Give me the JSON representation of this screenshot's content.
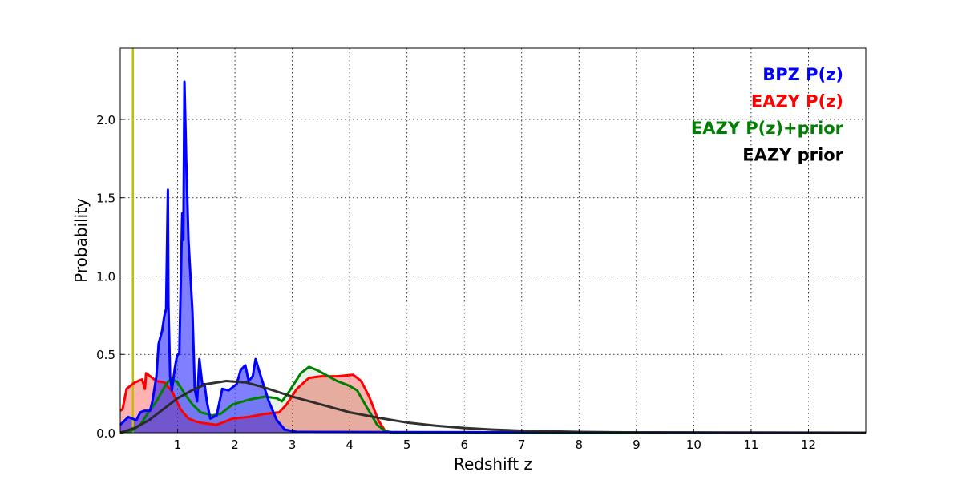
{
  "chart_data": {
    "type": "area",
    "title": "",
    "xlabel": "Redshift z",
    "ylabel": "Probability",
    "xlim": [
      0,
      13
    ],
    "ylim": [
      0,
      2.455
    ],
    "grid": true,
    "xticks": [
      1,
      2,
      3,
      4,
      5,
      6,
      7,
      8,
      9,
      10,
      11,
      12
    ],
    "yticks": [
      0.0,
      0.5,
      1.0,
      1.5,
      2.0
    ],
    "ytick_labels": [
      "0.0",
      "0.5",
      "1.0",
      "1.5",
      "2.0"
    ],
    "legend_placement": "top-right",
    "reference_line": {
      "z": 0.22,
      "color": "#bfbf00"
    },
    "series": [
      {
        "name": "EAZY P(z)",
        "color": "#ff0000",
        "fill": "#ff0000",
        "fill_opacity": 0.3,
        "points": [
          [
            0,
            0.14
          ],
          [
            0.04,
            0.15
          ],
          [
            0.11,
            0.28
          ],
          [
            0.25,
            0.32
          ],
          [
            0.38,
            0.34
          ],
          [
            0.43,
            0.28
          ],
          [
            0.45,
            0.38
          ],
          [
            0.63,
            0.33
          ],
          [
            0.77,
            0.32
          ],
          [
            0.91,
            0.26
          ],
          [
            1.05,
            0.15
          ],
          [
            1.19,
            0.09
          ],
          [
            1.33,
            0.07
          ],
          [
            1.47,
            0.06
          ],
          [
            1.68,
            0.05
          ],
          [
            1.96,
            0.09
          ],
          [
            2.24,
            0.1
          ],
          [
            2.52,
            0.12
          ],
          [
            2.77,
            0.13
          ],
          [
            2.9,
            0.18
          ],
          [
            3.08,
            0.28
          ],
          [
            3.29,
            0.35
          ],
          [
            3.5,
            0.36
          ],
          [
            3.78,
            0.36
          ],
          [
            4.06,
            0.37
          ],
          [
            4.2,
            0.33
          ],
          [
            4.34,
            0.23
          ],
          [
            4.5,
            0.08
          ],
          [
            4.62,
            0.01
          ],
          [
            4.76,
            0
          ],
          [
            13,
            0
          ]
        ]
      },
      {
        "name": "EAZY P(z)+prior",
        "color": "#008000",
        "fill": "#008000",
        "fill_opacity": 0.1,
        "points": [
          [
            0,
            0
          ],
          [
            0.21,
            0.015
          ],
          [
            0.35,
            0.05
          ],
          [
            0.49,
            0.13
          ],
          [
            0.63,
            0.2
          ],
          [
            0.77,
            0.29
          ],
          [
            0.84,
            0.33
          ],
          [
            0.91,
            0.34
          ],
          [
            1.0,
            0.32
          ],
          [
            1.12,
            0.25
          ],
          [
            1.26,
            0.18
          ],
          [
            1.4,
            0.13
          ],
          [
            1.51,
            0.12
          ],
          [
            1.6,
            0.11
          ],
          [
            1.75,
            0.12
          ],
          [
            1.96,
            0.18
          ],
          [
            2.24,
            0.21
          ],
          [
            2.52,
            0.23
          ],
          [
            2.73,
            0.22
          ],
          [
            2.82,
            0.2
          ],
          [
            2.94,
            0.26
          ],
          [
            3.15,
            0.38
          ],
          [
            3.29,
            0.42
          ],
          [
            3.43,
            0.4
          ],
          [
            3.78,
            0.33
          ],
          [
            3.99,
            0.3
          ],
          [
            4.13,
            0.27
          ],
          [
            4.27,
            0.18
          ],
          [
            4.48,
            0.05
          ],
          [
            4.62,
            0.01
          ],
          [
            4.76,
            0
          ],
          [
            13,
            0
          ]
        ]
      },
      {
        "name": "BPZ P(z)",
        "color": "#0000ff",
        "fill": "#0000ff",
        "fill_opacity": 0.5,
        "points": [
          [
            0,
            0.05
          ],
          [
            0.14,
            0.1
          ],
          [
            0.28,
            0.08
          ],
          [
            0.35,
            0.13
          ],
          [
            0.42,
            0.14
          ],
          [
            0.52,
            0.14
          ],
          [
            0.56,
            0.2
          ],
          [
            0.63,
            0.36
          ],
          [
            0.67,
            0.57
          ],
          [
            0.73,
            0.65
          ],
          [
            0.77,
            0.75
          ],
          [
            0.8,
            0.79
          ],
          [
            0.83,
            1.55
          ],
          [
            0.84,
            0.82
          ],
          [
            0.87,
            0.36
          ],
          [
            0.9,
            0.27
          ],
          [
            0.95,
            0.41
          ],
          [
            0.99,
            0.49
          ],
          [
            1.03,
            0.51
          ],
          [
            1.08,
            1.4
          ],
          [
            1.1,
            1.23
          ],
          [
            1.12,
            2.24
          ],
          [
            1.15,
            1.74
          ],
          [
            1.19,
            1.23
          ],
          [
            1.26,
            0.77
          ],
          [
            1.3,
            0.28
          ],
          [
            1.34,
            0.2
          ],
          [
            1.38,
            0.47
          ],
          [
            1.43,
            0.31
          ],
          [
            1.47,
            0.31
          ],
          [
            1.51,
            0.2
          ],
          [
            1.57,
            0.09
          ],
          [
            1.68,
            0.11
          ],
          [
            1.78,
            0.28
          ],
          [
            1.89,
            0.27
          ],
          [
            2.03,
            0.31
          ],
          [
            2.1,
            0.4
          ],
          [
            2.18,
            0.43
          ],
          [
            2.24,
            0.33
          ],
          [
            2.31,
            0.36
          ],
          [
            2.36,
            0.47
          ],
          [
            2.45,
            0.36
          ],
          [
            2.59,
            0.2
          ],
          [
            2.73,
            0.08
          ],
          [
            2.87,
            0.02
          ],
          [
            3.08,
            0.005
          ],
          [
            13,
            0
          ]
        ]
      },
      {
        "name": "EAZY prior",
        "color": "#262626",
        "fill": null,
        "fill_opacity": 0,
        "points": [
          [
            0,
            0
          ],
          [
            0.25,
            0.03
          ],
          [
            0.5,
            0.08
          ],
          [
            0.75,
            0.15
          ],
          [
            1,
            0.22
          ],
          [
            1.25,
            0.27
          ],
          [
            1.5,
            0.31
          ],
          [
            1.85,
            0.33
          ],
          [
            2.2,
            0.32
          ],
          [
            2.5,
            0.29
          ],
          [
            3,
            0.23
          ],
          [
            3.5,
            0.18
          ],
          [
            4,
            0.13
          ],
          [
            4.5,
            0.095
          ],
          [
            5,
            0.065
          ],
          [
            5.5,
            0.045
          ],
          [
            6,
            0.03
          ],
          [
            6.5,
            0.02
          ],
          [
            7,
            0.013
          ],
          [
            8,
            0.005
          ],
          [
            9,
            0.002
          ],
          [
            10,
            0.001
          ],
          [
            13,
            0
          ]
        ]
      }
    ],
    "legend": [
      {
        "label": "BPZ P(z)",
        "color": "#0000ff"
      },
      {
        "label": "EAZY P(z)",
        "color": "#ff0000"
      },
      {
        "label": "EAZY P(z)+prior",
        "color": "#008000"
      },
      {
        "label": "EAZY prior",
        "color": "#000000"
      }
    ]
  }
}
